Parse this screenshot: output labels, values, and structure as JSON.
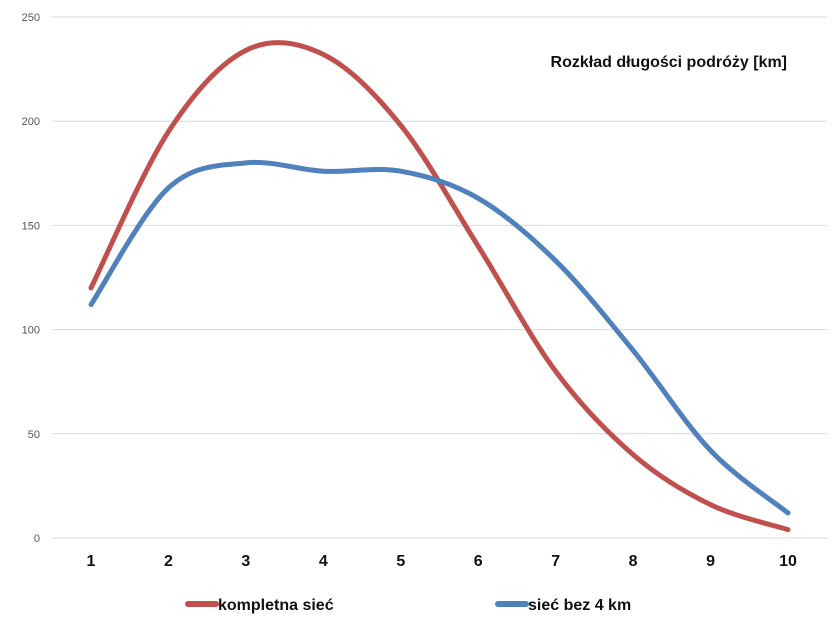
{
  "chart_data": {
    "type": "line",
    "title": "Rozkład długości podróży [km]",
    "xlabel": "",
    "ylabel": "",
    "categories": [
      "1",
      "2",
      "3",
      "4",
      "5",
      "6",
      "7",
      "8",
      "9",
      "10"
    ],
    "y_ticks": [
      "0",
      "50",
      "100",
      "150",
      "200",
      "250"
    ],
    "ylim": [
      0,
      250
    ],
    "grid": true,
    "legend_position": "bottom",
    "series": [
      {
        "name": "kompletna sieć",
        "color": "#c0504d",
        "values": [
          120,
          195,
          234,
          232,
          198,
          140,
          80,
          40,
          16,
          4
        ]
      },
      {
        "name": "sieć bez 4 km",
        "color": "#4f81bd",
        "values": [
          112,
          168,
          180,
          176,
          176,
          163,
          133,
          90,
          42,
          12
        ]
      }
    ]
  }
}
